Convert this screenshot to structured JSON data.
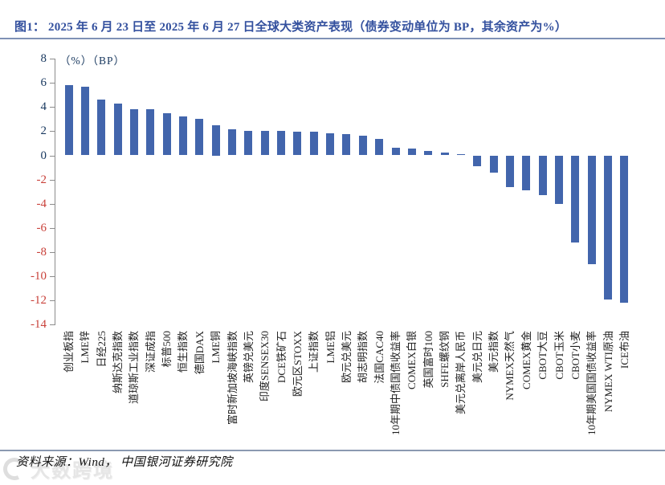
{
  "figure": {
    "title": "图1：  2025 年 6 月 23 日至 2025 年 6 月 27 日全球大类资产表现（债券变动单位为 BP，其余资产为%）",
    "source_note": "资料来源：Wind， 中国银河证券研究院",
    "watermark_text": "大数跨境"
  },
  "chart_data": {
    "type": "bar",
    "title": "2025年6月23日至2025年6月27日全球大类资产表现",
    "unit_label": "（%）（BP）",
    "xlabel": "",
    "ylabel": "",
    "ylim": [
      -14,
      8
    ],
    "ytick_interval": 2,
    "yticks": [
      8,
      6,
      4,
      2,
      0,
      -2,
      -4,
      -6,
      -8,
      -10,
      -12,
      -14
    ],
    "grid": false,
    "legend": "none",
    "bar_color": "#4265ac",
    "ytick_color_positive": "#17375e",
    "ytick_color_negative": "#c9413a",
    "categories": [
      "创业板指",
      "LME锌",
      "日经225",
      "纳斯达克指数",
      "道琼斯工业指数",
      "深证成指",
      "标普500",
      "恒生指数",
      "德国DAX",
      "LME铜",
      "富时新加坡海峡指数",
      "英镑兑美元",
      "印度SENSEX30",
      "DCE铁矿石",
      "欧元区STOXX",
      "上证指数",
      "LME铝",
      "欧元兑美元",
      "胡志明指数",
      "法国CAC40",
      "10年期中债国债收益率",
      "COMEX白银",
      "英国富时100",
      "SHFE螺纹钢",
      "美元兑离岸人民币",
      "美元兑日元",
      "美元指数",
      "NYMEX天然气",
      "COMEX黄金",
      "CBOT大豆",
      "CBOT玉米",
      "CBOT小麦",
      "10年期美国国债收益率",
      "NYMEX WTI原油",
      "ICE布油"
    ],
    "values": [
      5.8,
      5.7,
      4.6,
      4.3,
      3.85,
      3.8,
      3.5,
      3.25,
      3.0,
      2.5,
      2.15,
      2.05,
      2.0,
      2.0,
      1.95,
      1.95,
      1.85,
      1.75,
      1.6,
      1.35,
      0.65,
      0.55,
      0.35,
      0.25,
      0.1,
      -0.9,
      -1.45,
      -2.6,
      -2.9,
      -3.3,
      -4.0,
      -7.2,
      -9.0,
      -11.9,
      -12.2
    ]
  }
}
